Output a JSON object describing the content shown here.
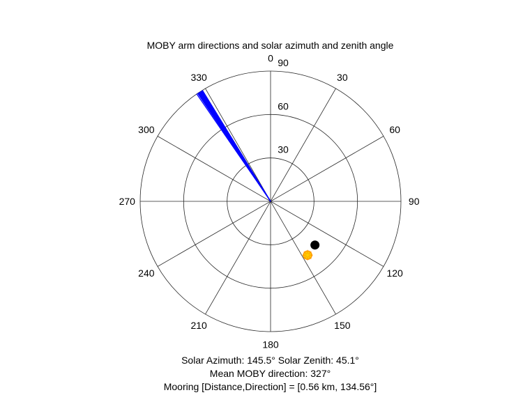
{
  "chart_data": {
    "type": "polar",
    "title": "MOBY arm directions and solar azimuth and zenith angle",
    "theta_direction": "clockwise",
    "theta_zero": "top",
    "theta_ticks": [
      "0",
      "30",
      "60",
      "90",
      "120",
      "150",
      "180",
      "210",
      "240",
      "270",
      "300",
      "330"
    ],
    "r_ticks": [
      "30",
      "60",
      "90"
    ],
    "r_max": 90,
    "grid": true,
    "arm_directions_deg": [
      327.0,
      326.0,
      328.0,
      326.5,
      327.5,
      325.5,
      328.5,
      326.8,
      327.2,
      326.2,
      327.8,
      328.2
    ],
    "arm_length": 90,
    "arm_color": "#0000ff",
    "solar_marker": {
      "azimuth_deg": 145.5,
      "zenith_deg": 45.1,
      "color": "#ffd000",
      "edge_color": "#ff9900"
    },
    "mooring_marker": {
      "direction_deg": 134.56,
      "radial": 43,
      "color": "#000000"
    },
    "captions": {
      "solar": "Solar Azimuth: 145.5°    Solar Zenith: 45.1°",
      "mean_direction": "Mean MOBY direction: 327°",
      "mooring": "Mooring [Distance,Direction] = [0.56 km, 134.56°]"
    }
  }
}
